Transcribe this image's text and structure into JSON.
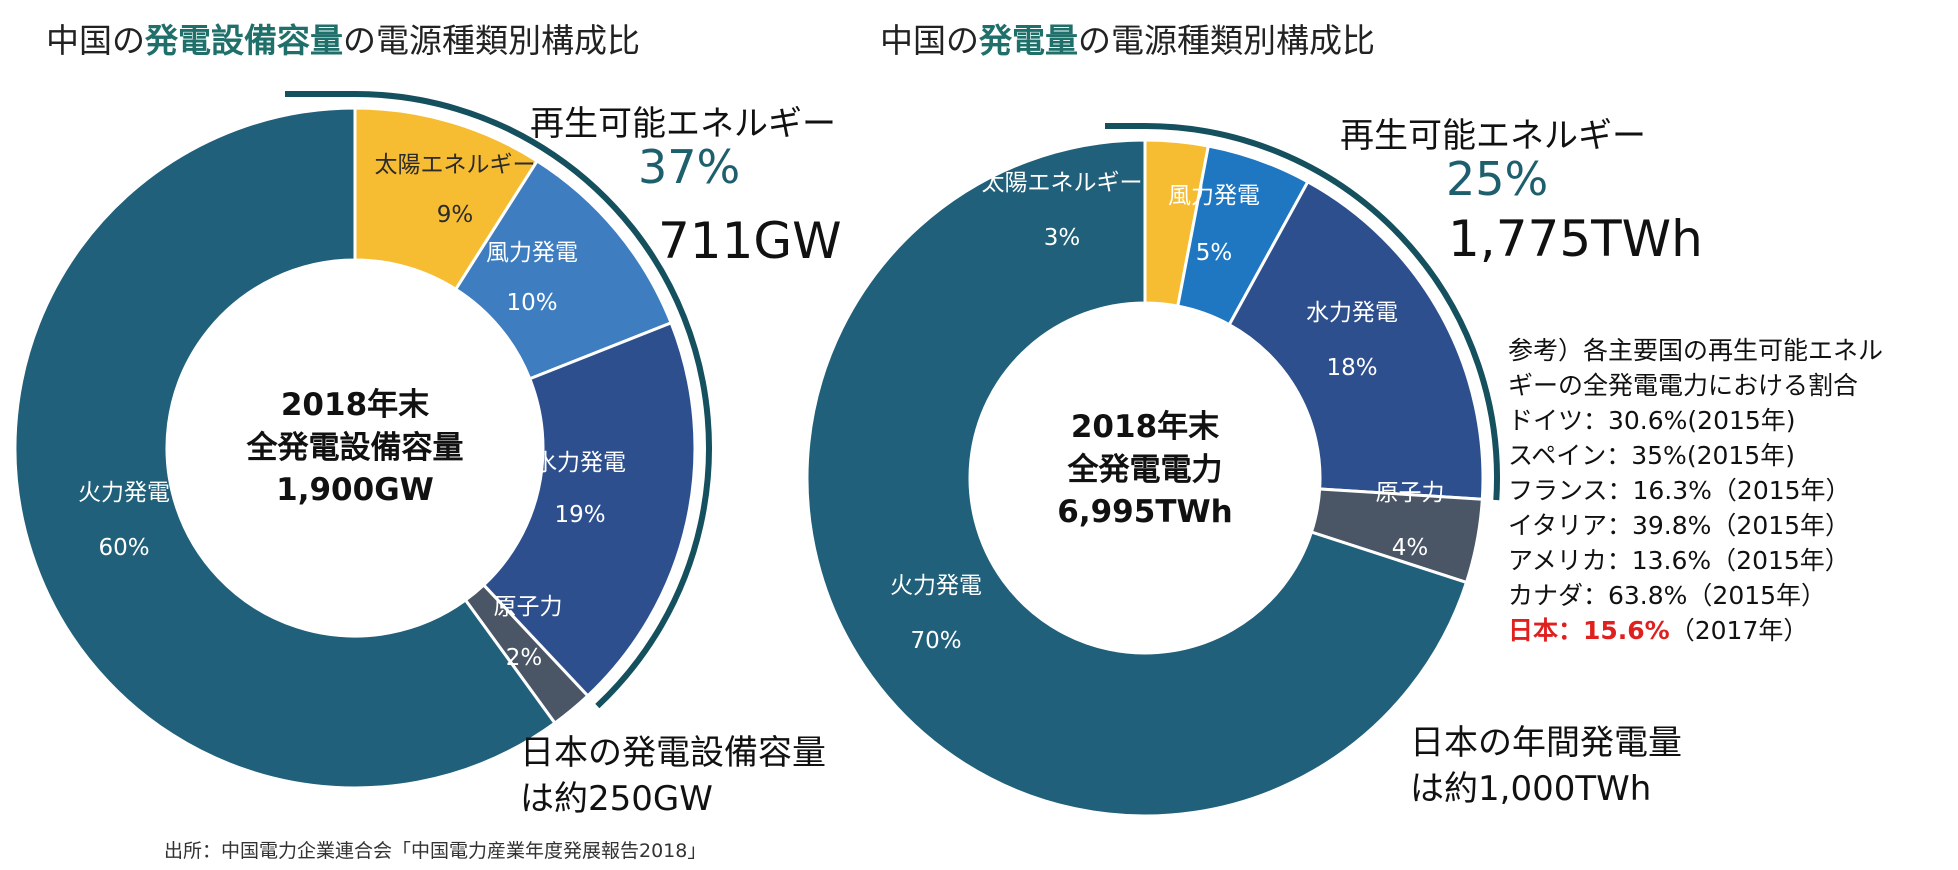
{
  "charts_header": {
    "left": {
      "pre": "中国の",
      "highlight": "発電設備容量",
      "post": "の電源種類別構成比"
    },
    "right": {
      "pre": "中国の",
      "highlight": "発電量",
      "post": "の電源種類別構成比"
    }
  },
  "renewable": {
    "left": {
      "label": "再生可能エネルギー",
      "share": "37%",
      "amount": "711GW"
    },
    "right": {
      "label": "再生可能エネルギー",
      "share": "25%",
      "amount": "1,775TWh"
    }
  },
  "japan_note": {
    "left": [
      "日本の発電設備容量",
      "は約250GW"
    ],
    "right": [
      "日本の年間発電量",
      "は約1,000TWh"
    ]
  },
  "reference": {
    "lines": [
      "参考）各主要国の再生可能エネル",
      "ギーの全発電電力における割合",
      "ドイツ：30.6%(2015年)",
      "スペイン：35%(2015年)",
      "フランス：16.3%（2015年）",
      "イタリア：39.8%（2015年）",
      "アメリカ：13.6%（2015年）",
      "カナダ：63.8%（2015年）"
    ],
    "japan_highlight": "日本：15.6%",
    "japan_suffix": "（2017年）"
  },
  "source": "出所：中国電力企業連合会「中国電力産業年度発展報告2018」",
  "colors": {
    "solar": "#f6bd33",
    "wind_left": "#3d7dc0",
    "wind_right": "#1f77c1",
    "hydro": "#2e4f8e",
    "nuclear": "#4a5565",
    "thermal": "#20607a",
    "bracket": "#14505e"
  },
  "chart_data": [
    {
      "type": "pie",
      "title": "中国の発電設備容量の電源種類別構成比",
      "center_label": [
        "2018年末",
        "全発電設備容量",
        "1,900GW"
      ],
      "categories": [
        "太陽エネルギー",
        "風力発電",
        "水力発電",
        "原子力",
        "火力発電"
      ],
      "values": [
        9,
        10,
        19,
        2,
        60
      ],
      "value_labels": [
        "9%",
        "10%",
        "19%",
        "2%",
        "60%"
      ],
      "unit": "%"
    },
    {
      "type": "pie",
      "title": "中国の発電量の電源種類別構成比",
      "center_label": [
        "2018年末",
        "全発電電力",
        "6,995TWh"
      ],
      "categories": [
        "太陽エネルギー",
        "風力発電",
        "水力発電",
        "原子力",
        "火力発電"
      ],
      "values": [
        3,
        5,
        18,
        4,
        70
      ],
      "value_labels": [
        "3%",
        "5%",
        "18%",
        "4%",
        "70%"
      ],
      "unit": "%"
    }
  ]
}
